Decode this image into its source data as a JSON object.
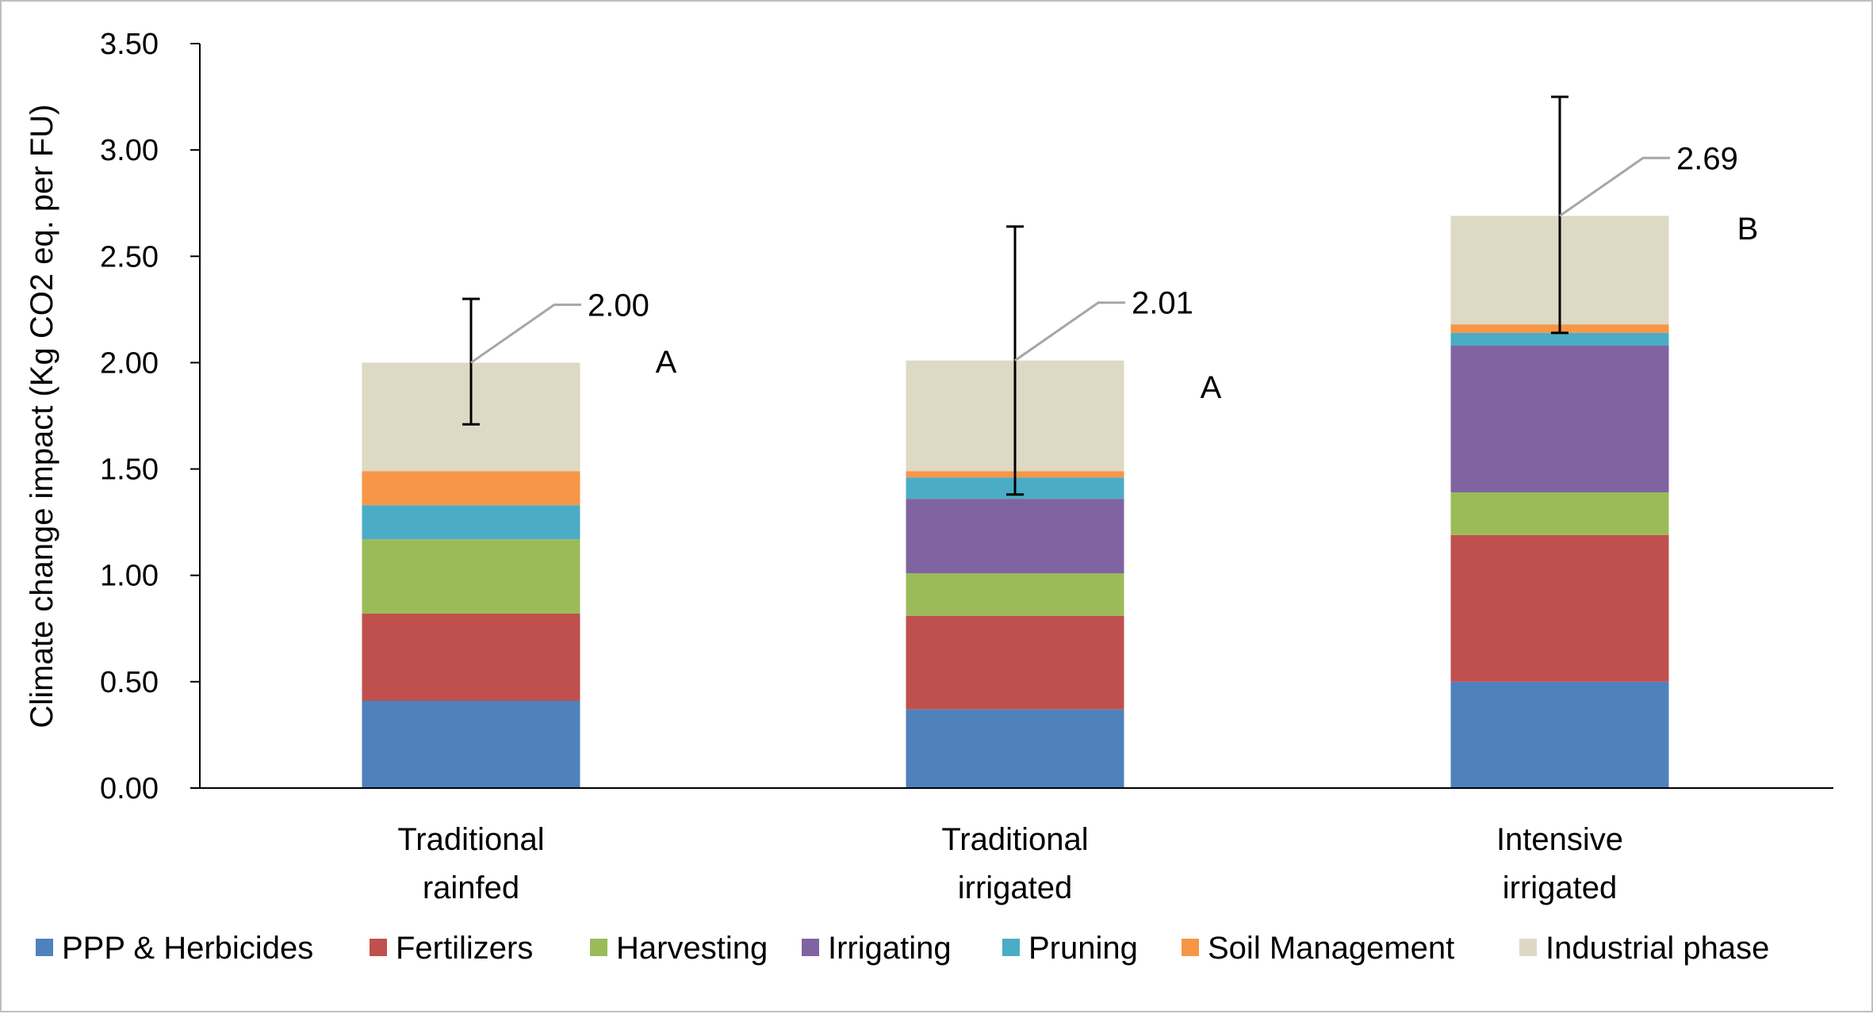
{
  "chart_data": {
    "type": "bar",
    "stacked": true,
    "title": "",
    "ylabel": "Climate change  impact (Kg CO2 eq. per FU)",
    "xlabel": "",
    "ylim": [
      0,
      3.5
    ],
    "yticks": [
      "0.00",
      "0.50",
      "1.00",
      "1.50",
      "2.00",
      "2.50",
      "3.00",
      "3.50"
    ],
    "grid": false,
    "legend_position": "bottom",
    "categories": [
      [
        "Traditional",
        "rainfed"
      ],
      [
        "Traditional",
        "irrigated"
      ],
      [
        "Intensive",
        "irrigated"
      ]
    ],
    "series": [
      {
        "name": "PPP & Herbicides",
        "color": "#4f81bd",
        "values": [
          0.41,
          0.37,
          0.5
        ]
      },
      {
        "name": "Fertilizers",
        "color": "#c0504d",
        "values": [
          0.41,
          0.44,
          0.69
        ]
      },
      {
        "name": "Harvesting",
        "color": "#9bbb59",
        "values": [
          0.35,
          0.2,
          0.2
        ]
      },
      {
        "name": "Irrigating",
        "color": "#8064a2",
        "values": [
          0.0,
          0.35,
          0.69
        ]
      },
      {
        "name": "Pruning",
        "color": "#4bacc6",
        "values": [
          0.16,
          0.1,
          0.06
        ]
      },
      {
        "name": "Soil Management",
        "color": "#f79646",
        "values": [
          0.16,
          0.03,
          0.04
        ]
      },
      {
        "name": "Industrial phase",
        "color": "#ddd9c4",
        "values": [
          0.51,
          0.52,
          0.51
        ]
      }
    ],
    "totals": [
      "2.00",
      "2.01",
      "2.69"
    ],
    "error_bars": [
      {
        "low": 1.71,
        "high": 2.3
      },
      {
        "low": 1.38,
        "high": 2.64
      },
      {
        "low": 2.14,
        "high": 3.25
      }
    ],
    "significance_letters": [
      "A",
      "A",
      "B"
    ]
  }
}
